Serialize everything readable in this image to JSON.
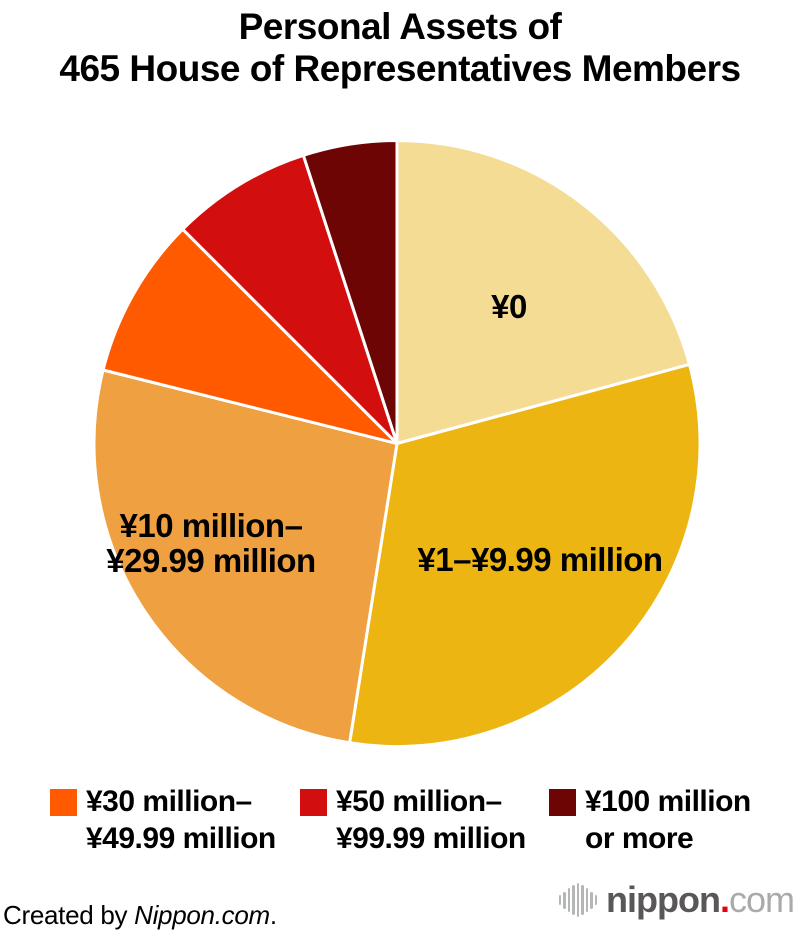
{
  "title": {
    "line1": "Personal Assets of",
    "line2": "465 House of Representatives Members"
  },
  "chart_data": {
    "type": "pie",
    "title": "Personal Assets of 465 House of Representatives Members",
    "total_members_shown_in_title": 465,
    "start_angle_deg": 0,
    "direction": "clockwise",
    "legend_position": "bottom",
    "stroke_color": "#ffffff",
    "slices": [
      {
        "label": "¥0",
        "percent": 20.8,
        "color": "#F4DC95",
        "label_on_slice": true
      },
      {
        "label": "¥1–¥9.99 million",
        "percent": 31.7,
        "color": "#EDB511",
        "label_on_slice": true
      },
      {
        "label": "¥10 million–¥29.99 million",
        "percent": 26.4,
        "color": "#EFA041",
        "label_on_slice": true,
        "label_lines": [
          "¥10 million–",
          "¥29.99 million"
        ]
      },
      {
        "label": "¥30 million–¥49.99 million",
        "percent": 8.6,
        "color": "#FF5A00",
        "label_on_slice": false
      },
      {
        "label": "¥50 million–¥99.99 million",
        "percent": 7.5,
        "color": "#D30E0E",
        "label_on_slice": false
      },
      {
        "label": "¥100 million or more",
        "percent": 5.0,
        "color": "#6C0504",
        "label_on_slice": false
      }
    ]
  },
  "legend": {
    "items": [
      {
        "lines": [
          "¥30 million–",
          "¥49.99 million"
        ],
        "color": "#FF5A00"
      },
      {
        "lines": [
          "¥50 million–",
          "¥99.99 million"
        ],
        "color": "#D30E0E"
      },
      {
        "lines": [
          "¥100 million",
          "or more"
        ],
        "color": "#6C0504"
      }
    ]
  },
  "footer": {
    "credit_prefix": "Created by ",
    "credit_brand": "Nippon.com",
    "credit_suffix": ".",
    "logo": {
      "word": "nippon",
      "dot": ".",
      "tld": "com"
    }
  }
}
